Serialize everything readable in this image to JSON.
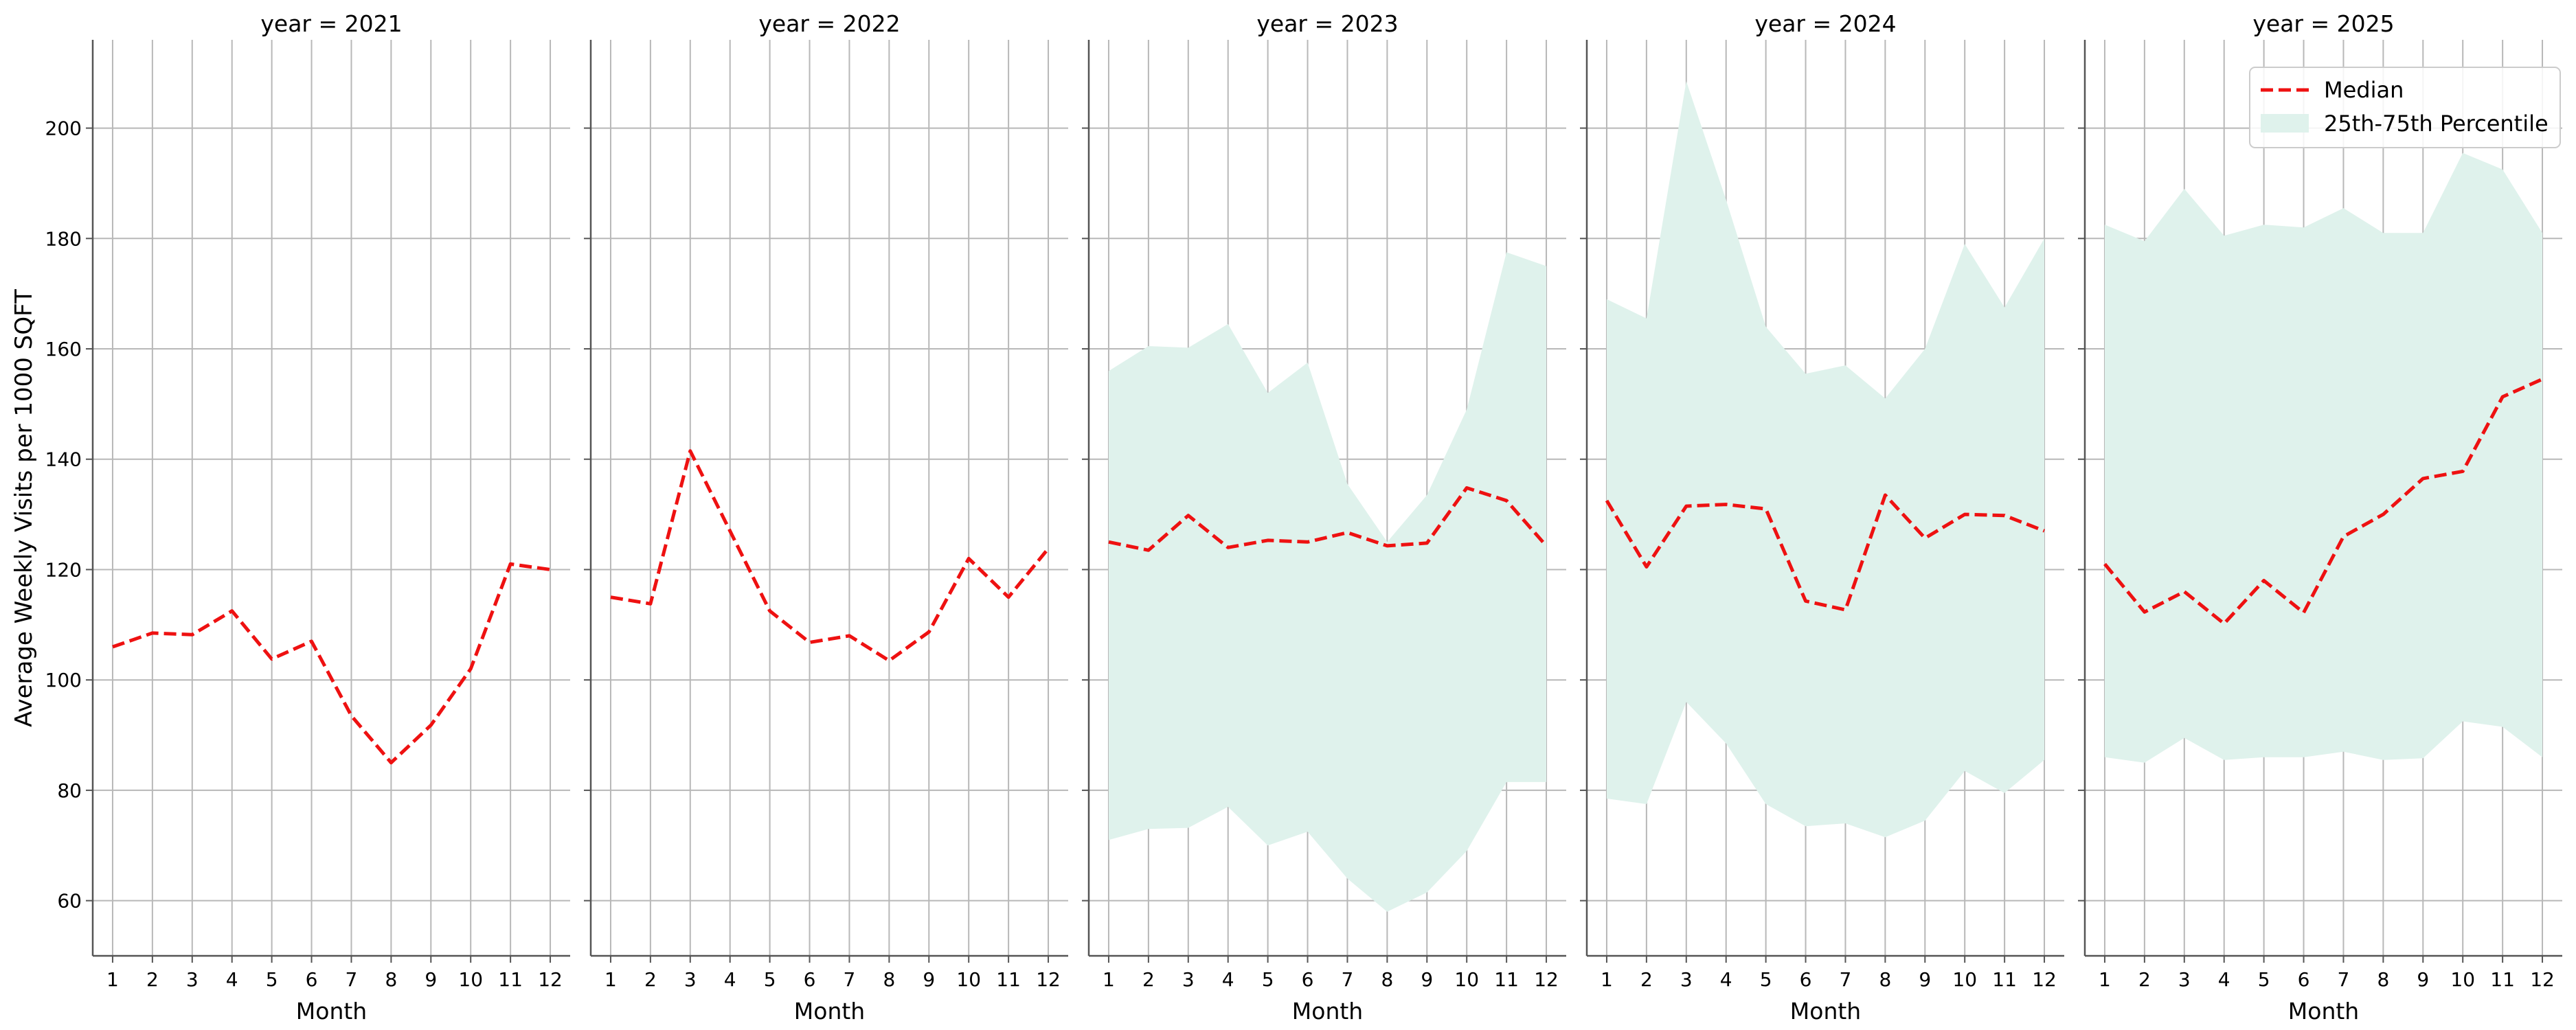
{
  "chart_data": {
    "type": "line",
    "ylabel": "Average Weekly Visits per 1000 SQFT",
    "ylim": [
      50,
      216
    ],
    "yticks": [
      60,
      80,
      100,
      120,
      140,
      160,
      180,
      200
    ],
    "xlim": [
      0.5,
      12.5
    ],
    "xticks": [
      1,
      2,
      3,
      4,
      5,
      6,
      7,
      8,
      9,
      10,
      11,
      12
    ],
    "grid": true,
    "legend": {
      "position": "top-right",
      "entries": [
        "Median",
        "25th-75th Percentile"
      ]
    },
    "colors": {
      "median": "#ee1111",
      "band": "#dff2ec",
      "grid": "#b8b8b8",
      "axis": "#555555"
    },
    "facets": [
      {
        "title": "year = 2021",
        "xlabel": "Month",
        "median": [
          106,
          108.5,
          108.2,
          112.5,
          103.8,
          107,
          93.5,
          85,
          91.8,
          102,
          121,
          120
        ]
      },
      {
        "title": "year = 2022",
        "xlabel": "Month",
        "median": [
          115,
          113.8,
          141.5,
          127,
          112.5,
          106.8,
          108,
          103.5,
          108.7,
          122,
          115,
          123.8
        ]
      },
      {
        "title": "year = 2023",
        "xlabel": "Month",
        "median": [
          125,
          123.5,
          129.8,
          124,
          125.3,
          125,
          126.7,
          124.3,
          124.8,
          134.8,
          132.5,
          124.3
        ],
        "p25": [
          71,
          73,
          73.2,
          77,
          70,
          72.5,
          64,
          58,
          61.5,
          69,
          81.5,
          81.5
        ],
        "p75": [
          156,
          160.5,
          160.2,
          164.5,
          152,
          157.5,
          135.5,
          125,
          133.5,
          149,
          177.5,
          175
        ]
      },
      {
        "title": "year = 2024",
        "xlabel": "Month",
        "median": [
          132.5,
          120.5,
          131.5,
          131.8,
          131,
          114.3,
          112.7,
          133.5,
          125.7,
          130,
          129.8,
          127
        ],
        "p25": [
          78.5,
          77.5,
          96,
          88.5,
          77.5,
          73.5,
          74,
          71.5,
          74.5,
          83.5,
          79.5,
          85.5
        ],
        "p75": [
          169,
          165.5,
          208.5,
          187,
          164,
          155.5,
          157,
          151,
          160,
          179,
          167.5,
          180
        ]
      },
      {
        "title": "year = 2025",
        "xlabel": "Month",
        "median": [
          121,
          112.3,
          116,
          110.2,
          118,
          112.2,
          126,
          130,
          136.5,
          137.8,
          151.3,
          154.5
        ],
        "p25": [
          86,
          85,
          89.5,
          85.5,
          86,
          86,
          87,
          85.5,
          85.8,
          92.5,
          91.5,
          86
        ],
        "p75": [
          182.5,
          179.5,
          189,
          180.5,
          182.5,
          182,
          185.5,
          181,
          181,
          195.5,
          192.5,
          181
        ]
      }
    ]
  }
}
